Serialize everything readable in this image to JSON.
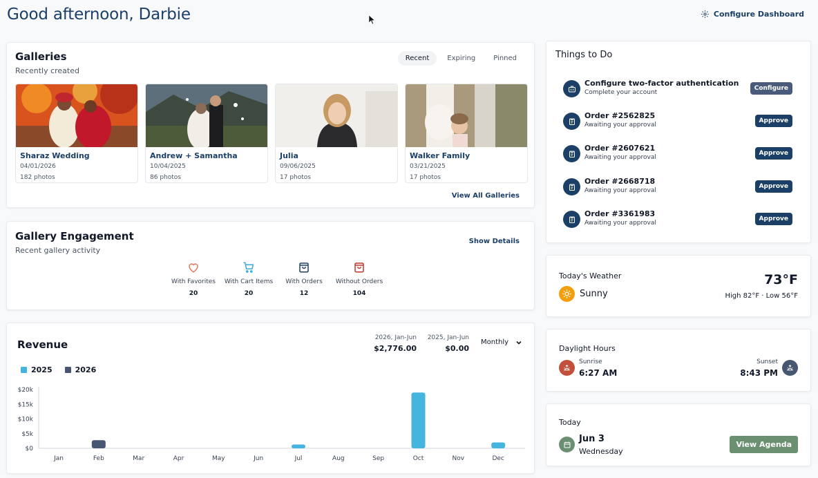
{
  "header": {
    "greeting": "Good afternoon, Darbie",
    "configure_label": "Configure Dashboard"
  },
  "galleries": {
    "title": "Galleries",
    "subtitle": "Recently created",
    "tabs": [
      {
        "label": "Recent",
        "active": true
      },
      {
        "label": "Expiring",
        "active": false
      },
      {
        "label": "Pinned",
        "active": false
      }
    ],
    "items": [
      {
        "name": "Sharaz Wedding",
        "date": "04/01/2026",
        "count": "182 photos"
      },
      {
        "name": "Andrew + Samantha",
        "date": "10/04/2025",
        "count": "86 photos"
      },
      {
        "name": "Julia",
        "date": "09/06/2025",
        "count": "17 photos"
      },
      {
        "name": "Walker Family",
        "date": "03/21/2025",
        "count": "17 photos"
      }
    ],
    "view_all": "View All Galleries"
  },
  "engagement": {
    "title": "Gallery Engagement",
    "subtitle": "Recent gallery activity",
    "show_details": "Show Details",
    "stats": [
      {
        "label": "With Favorites",
        "value": "20",
        "icon": "heart-icon",
        "color": "#e07a5f"
      },
      {
        "label": "With Cart Items",
        "value": "20",
        "icon": "cart-icon",
        "color": "#3ba9d8"
      },
      {
        "label": "With Orders",
        "value": "12",
        "icon": "bag-icon",
        "color": "#1b3f66"
      },
      {
        "label": "Without Orders",
        "value": "104",
        "icon": "bag-icon",
        "color": "#c0392b"
      }
    ]
  },
  "revenue": {
    "title": "Revenue",
    "summaries": [
      {
        "period": "2026, Jan-Jun",
        "amount": "$2,776.00"
      },
      {
        "period": "2025, Jan-Jun",
        "amount": "$0.00"
      }
    ],
    "range_select": "Monthly"
  },
  "chart_data": {
    "type": "bar",
    "categories": [
      "Jan",
      "Feb",
      "Mar",
      "Apr",
      "May",
      "Jun",
      "Jul",
      "Aug",
      "Sep",
      "Oct",
      "Nov",
      "Dec"
    ],
    "series": [
      {
        "name": "2025",
        "color": "#45b4de",
        "values": [
          0,
          0,
          0,
          0,
          0,
          0,
          1300,
          0,
          0,
          19000,
          0,
          2000
        ]
      },
      {
        "name": "2026",
        "color": "#475771",
        "values": [
          0,
          2776,
          0,
          0,
          0,
          0,
          0,
          0,
          0,
          0,
          0,
          0
        ]
      }
    ],
    "yticks": [
      "$0",
      "$5k",
      "$10k",
      "$15k",
      "$20k"
    ],
    "ylim": [
      0,
      20000
    ],
    "legend": "top-left",
    "grid": false
  },
  "todo": {
    "title": "Things to Do",
    "tasks": [
      {
        "title": "Configure two-factor authentication",
        "subtitle": "Complete your account",
        "action": "Configure",
        "icon": "briefcase-icon"
      },
      {
        "title": "Order #2562825",
        "subtitle": "Awaiting your approval",
        "action": "Approve",
        "icon": "clipboard-icon"
      },
      {
        "title": "Order #2607621",
        "subtitle": "Awaiting your approval",
        "action": "Approve",
        "icon": "clipboard-icon"
      },
      {
        "title": "Order #2668718",
        "subtitle": "Awaiting your approval",
        "action": "Approve",
        "icon": "clipboard-icon"
      },
      {
        "title": "Order #3361983",
        "subtitle": "Awaiting your approval",
        "action": "Approve",
        "icon": "clipboard-icon"
      }
    ]
  },
  "weather": {
    "title": "Today's Weather",
    "condition": "Sunny",
    "temp": "73°F",
    "high_low": "High 82°F · Low 56°F"
  },
  "daylight": {
    "title": "Daylight Hours",
    "sunrise_label": "Sunrise",
    "sunrise_time": "6:27 AM",
    "sunset_label": "Sunset",
    "sunset_time": "8:43 PM"
  },
  "today": {
    "title": "Today",
    "date": "Jun 3",
    "weekday": "Wednesday",
    "agenda_label": "View Agenda"
  }
}
